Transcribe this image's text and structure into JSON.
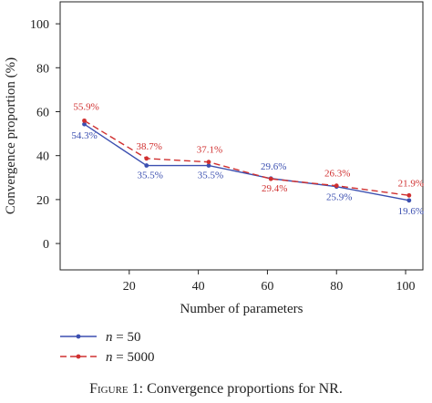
{
  "chart_data": {
    "type": "line",
    "xlabel": "Number of parameters",
    "ylabel": "Convergence proportion (%)",
    "xlim": [
      0,
      105
    ],
    "ylim": [
      -12,
      110
    ],
    "xticks": [
      20,
      40,
      60,
      80,
      100
    ],
    "yticks": [
      0,
      20,
      40,
      60,
      80,
      100
    ],
    "x": [
      7,
      25,
      43,
      61,
      80,
      101
    ],
    "series": [
      {
        "name": "n = 50",
        "name_italic": "n",
        "name_rest": " = 50",
        "color": "#3b4fb0",
        "dash": "solid",
        "values": [
          54.3,
          35.5,
          35.5,
          29.6,
          25.9,
          19.6
        ],
        "labels": [
          "54.3%",
          "35.5%",
          "35.5%",
          "29.6%",
          "25.9%",
          "19.6%"
        ]
      },
      {
        "name": "n = 5000",
        "name_italic": "n",
        "name_rest": " = 5000",
        "color": "#d03030",
        "dash": "dashed",
        "values": [
          55.9,
          38.7,
          37.1,
          29.4,
          26.3,
          21.9
        ],
        "labels": [
          "55.9%",
          "38.7%",
          "37.1%",
          "29.4%",
          "26.3%",
          "21.9%"
        ]
      }
    ],
    "legend_position": "bottom-left"
  },
  "caption": {
    "prefix": "Figure 1:",
    "text": " Convergence proportions for NR."
  }
}
